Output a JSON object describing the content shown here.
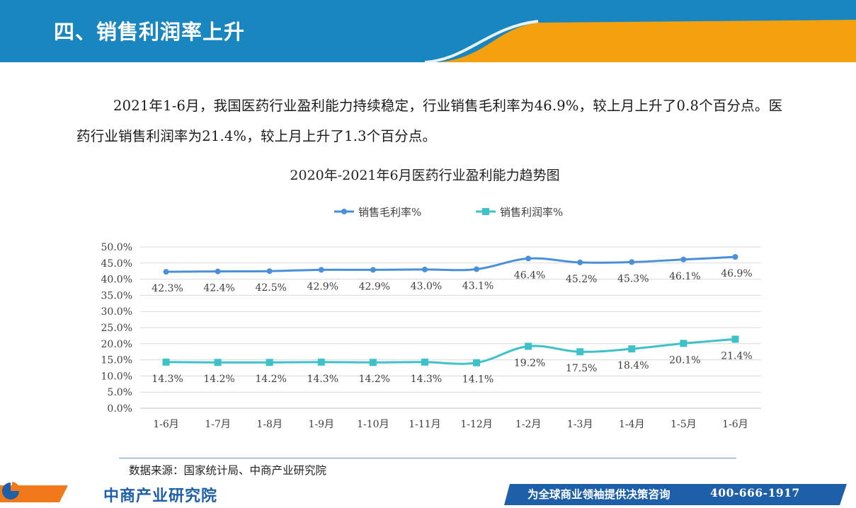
{
  "header": {
    "title": "四、销售利润率上升"
  },
  "intro": {
    "text": "2021年1-6月，我国医药行业盈利能力持续稳定，行业销售毛利率为46.9%，较上月上升了0.8个百分点。医药行业销售利润率为21.4%，较上月上升了1.3个百分点。"
  },
  "chart_data": {
    "type": "line",
    "title": "2020年-2021年6月医药行业盈利能力趋势图",
    "categories": [
      "1-6月",
      "1-7月",
      "1-8月",
      "1-9月",
      "1-10月",
      "1-11月",
      "1-12月",
      "1-2月",
      "1-3月",
      "1-4月",
      "1-5月",
      "1-6月"
    ],
    "series": [
      {
        "name": "销售毛利率%",
        "marker": "circle",
        "color": "#4a90d9",
        "values": [
          42.3,
          42.4,
          42.5,
          42.9,
          42.9,
          43.0,
          43.1,
          46.4,
          45.2,
          45.3,
          46.1,
          46.9
        ],
        "labels": [
          "42.3%",
          "42.4%",
          "42.5%",
          "42.9%",
          "42.9%",
          "43.0%",
          "43.1%",
          "46.4%",
          "45.2%",
          "45.3%",
          "46.1%",
          "46.9%"
        ]
      },
      {
        "name": "销售利润率%",
        "marker": "square",
        "color": "#3fc1c9",
        "values": [
          14.3,
          14.2,
          14.2,
          14.3,
          14.2,
          14.3,
          14.1,
          19.2,
          17.5,
          18.4,
          20.1,
          21.4
        ],
        "labels": [
          "14.3%",
          "14.2%",
          "14.2%",
          "14.3%",
          "14.2%",
          "14.3%",
          "14.1%",
          "19.2%",
          "17.5%",
          "18.4%",
          "20.1%",
          "21.4%"
        ]
      }
    ],
    "y_ticks": [
      "0.0%",
      "5.0%",
      "10.0%",
      "15.0%",
      "20.0%",
      "25.0%",
      "30.0%",
      "35.0%",
      "40.0%",
      "45.0%",
      "50.0%"
    ],
    "ylim": [
      0,
      50
    ],
    "grid": true,
    "legend_position": "top-center"
  },
  "source": "数据来源：国家统计局、中商产业研究院",
  "footer": {
    "brand": "中商产业研究院",
    "slogan": "为全球商业领袖提供决策咨询",
    "phone": "400-666-1917"
  },
  "colors": {
    "header_blue": "#1a86c0",
    "header_orange": "#f5a00f",
    "brand_blue": "#1d5fa8",
    "footer_orange": "#f07a1a"
  }
}
